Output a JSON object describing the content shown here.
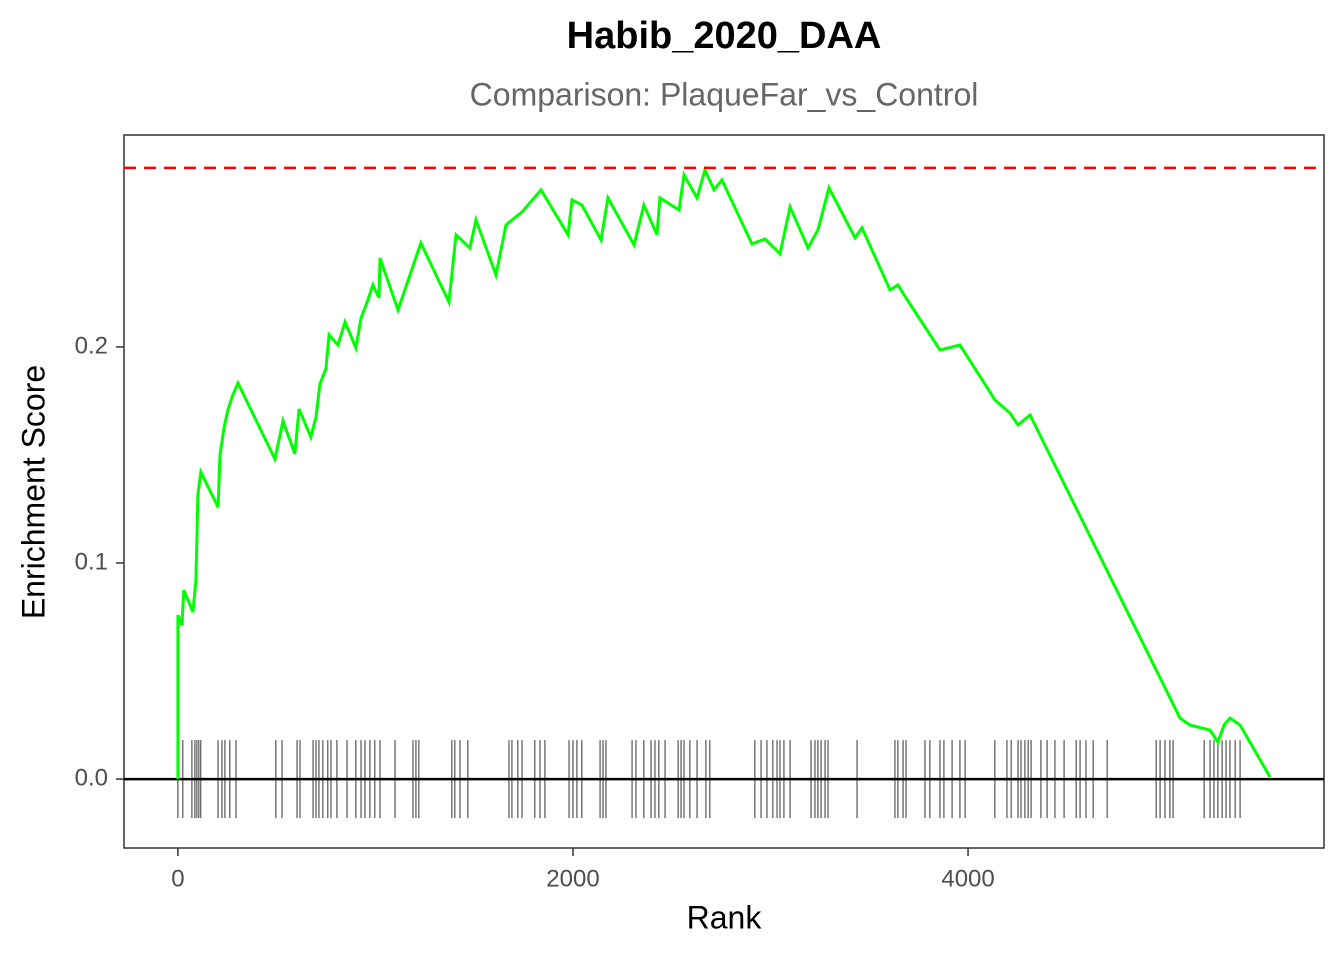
{
  "chart_data": {
    "type": "line",
    "title": "Habib_2020_DAA",
    "subtitle": "Comparison: PlaqueFar_vs_Control",
    "x_label": "Rank",
    "y_label": "Enrichment Score",
    "xlim": [
      -273,
      5802
    ],
    "ylim": [
      -0.0319,
      0.2981
    ],
    "xticks": [
      0,
      2000,
      4000
    ],
    "yticks": [
      {
        "value": 0,
        "label": "0.0"
      },
      0.1,
      0.2
    ],
    "series": [
      {
        "color": "#00ff00",
        "x": [
          0,
          0,
          20,
          30,
          76,
          91,
          101,
          116,
          203,
          213,
          233,
          253,
          278,
          304,
          491,
          532,
          592,
          613,
          673,
          699,
          719,
          749,
          765,
          810,
          846,
          901,
          927,
          962,
          987,
          1018,
          1023,
          1114,
          1230,
          1372,
          1408,
          1478,
          1509,
          1610,
          1661,
          1742,
          1838,
          1975,
          1995,
          2045,
          2142,
          2177,
          2309,
          2359,
          2425,
          2440,
          2537,
          2562,
          2628,
          2668,
          2714,
          2754,
          2906,
          2972,
          3048,
          3099,
          3190,
          3240,
          3296,
          3428,
          3463,
          3605,
          3645,
          3686,
          3858,
          3959,
          4136,
          4212,
          4253,
          4314,
          5073,
          5124,
          5225,
          5265,
          5296,
          5326,
          5377,
          5529
        ],
        "values": [
          0,
          0.0759,
          0.0713,
          0.0875,
          0.0773,
          0.0921,
          0.1315,
          0.1421,
          0.1259,
          0.15,
          0.1625,
          0.1708,
          0.1778,
          0.1833,
          0.1481,
          0.1657,
          0.1505,
          0.1713,
          0.1583,
          0.1676,
          0.1829,
          0.1898,
          0.2056,
          0.2009,
          0.2116,
          0.1995,
          0.2134,
          0.2218,
          0.2287,
          0.2227,
          0.2412,
          0.2171,
          0.2481,
          0.2208,
          0.2519,
          0.2458,
          0.2588,
          0.2333,
          0.2565,
          0.2625,
          0.2727,
          0.2519,
          0.2681,
          0.2657,
          0.2495,
          0.269,
          0.2472,
          0.2657,
          0.2519,
          0.269,
          0.2634,
          0.2796,
          0.269,
          0.2819,
          0.2727,
          0.2773,
          0.2477,
          0.25,
          0.2431,
          0.2648,
          0.2458,
          0.2542,
          0.2736,
          0.2505,
          0.2551,
          0.2264,
          0.2287,
          0.2227,
          0.1986,
          0.2009,
          0.1755,
          0.1694,
          0.1639,
          0.1685,
          0.0282,
          0.025,
          0.0227,
          0.0171,
          0.025,
          0.0282,
          0.025,
          0.0009
        ]
      }
    ],
    "hits": [
      0,
      25,
      71,
      86,
      96,
      106,
      116,
      203,
      223,
      238,
      263,
      294,
      496,
      527,
      603,
      618,
      684,
      699,
      714,
      734,
      759,
      775,
      805,
      856,
      901,
      927,
      947,
      972,
      997,
      1023,
      1099,
      1190,
      1205,
      1220,
      1387,
      1402,
      1428,
      1468,
      1676,
      1691,
      1721,
      1742,
      1807,
      1833,
      1858,
      1980,
      2000,
      2020,
      2045,
      2137,
      2152,
      2167,
      2299,
      2319,
      2359,
      2395,
      2415,
      2435,
      2466,
      2532,
      2547,
      2562,
      2592,
      2628,
      2673,
      2693,
      2921,
      2952,
      2982,
      3012,
      3033,
      3048,
      3068,
      3099,
      3205,
      3225,
      3240,
      3256,
      3276,
      3291,
      3438,
      3630,
      3645,
      3671,
      3686,
      3782,
      3807,
      3858,
      3878,
      3919,
      3959,
      3985,
      4136,
      4197,
      4218,
      4253,
      4268,
      4288,
      4304,
      4319,
      4369,
      4400,
      4440,
      4486,
      4547,
      4567,
      4597,
      4633,
      4704,
      4952,
      4972,
      4997,
      5022,
      5038,
      5195,
      5225,
      5245,
      5265,
      5286,
      5306,
      5326,
      5352,
      5377
    ],
    "max_es": 0.2829,
    "max_es_color": "#ff0000"
  }
}
